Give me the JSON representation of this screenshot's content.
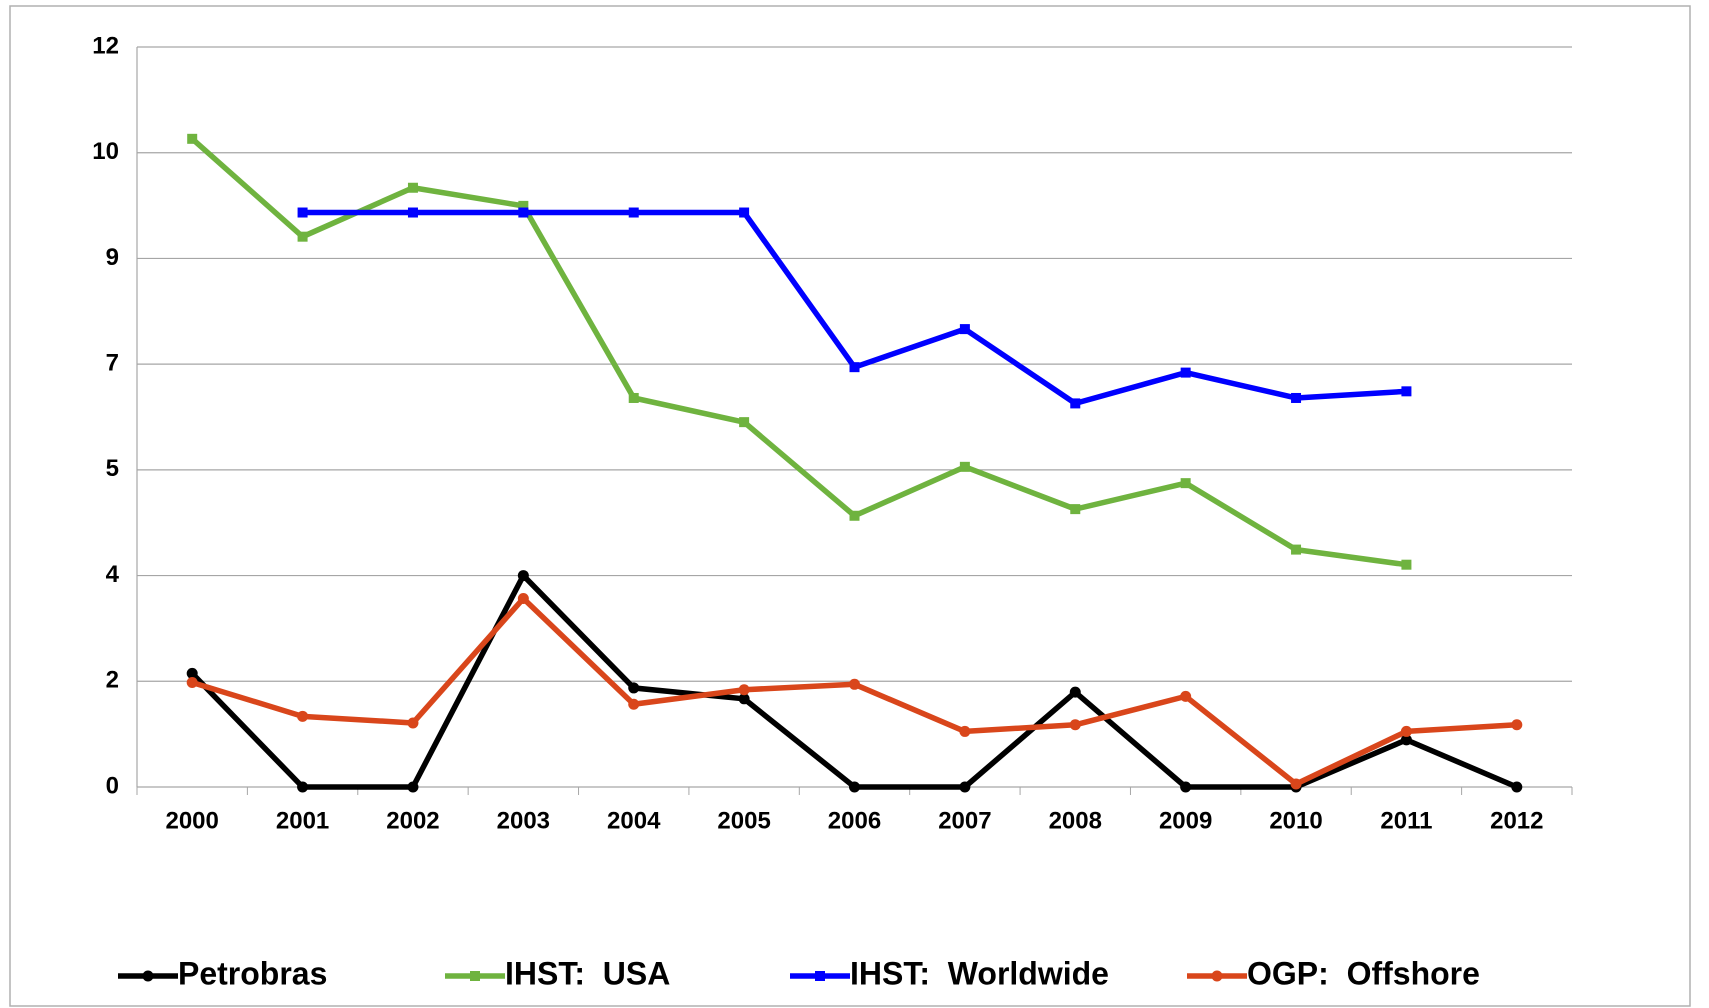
{
  "chart_data": {
    "type": "line",
    "categories": [
      "2000",
      "2001",
      "2002",
      "2003",
      "2004",
      "2005",
      "2006",
      "2007",
      "2008",
      "2009",
      "2010",
      "2011",
      "2012"
    ],
    "series": [
      {
        "name": "Petrobras",
        "color": "#000000",
        "marker": "circle",
        "values": [
          1.88,
          0,
          0,
          3.5,
          1.64,
          1.46,
          0,
          0,
          1.57,
          0,
          0,
          0.78,
          0
        ]
      },
      {
        "name": "IHST:  USA",
        "color": "#6fb33f",
        "marker": "square",
        "values": [
          10.73,
          9.11,
          9.92,
          9.62,
          6.44,
          6.04,
          4.49,
          5.3,
          4.6,
          5.03,
          3.93,
          3.68,
          null
        ]
      },
      {
        "name": "IHST:  Worldwide",
        "color": "#0000ff",
        "marker": "square",
        "values": [
          null,
          9.51,
          9.51,
          9.51,
          9.51,
          9.51,
          6.95,
          7.58,
          6.35,
          6.86,
          6.44,
          6.55,
          null
        ]
      },
      {
        "name": "OGP:  Offshore",
        "color": "#d9461b",
        "marker": "circle",
        "values": [
          1.73,
          1.17,
          1.06,
          3.12,
          1.37,
          1.61,
          1.7,
          0.92,
          1.03,
          1.5,
          0.05,
          0.92,
          1.03
        ]
      }
    ],
    "ylim": [
      0,
      12.25
    ],
    "yticks": [
      0,
      {
        "value": 1.75,
        "label": "2"
      },
      {
        "value": 3.5,
        "label": "4"
      },
      {
        "value": 5.25,
        "label": "5"
      },
      7,
      {
        "value": 8.75,
        "label": "9"
      },
      {
        "value": 10.5,
        "label": "10"
      },
      {
        "value": 12.25,
        "label": "12"
      }
    ],
    "grid": true,
    "legend": "bottom"
  }
}
